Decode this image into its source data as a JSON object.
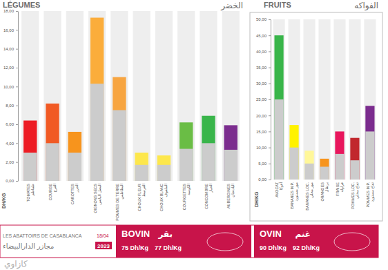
{
  "chart_data": [
    {
      "type": "bar",
      "title": "LÉGUMES",
      "subtitle": "الخضر",
      "y_label": "DH/KG",
      "categories": [
        "TOMATES\nطماطم",
        "COURGE\nالقرع",
        "CAROTTES\nالجزر",
        "OIGNONS SECS\nالبصل اليابس",
        "POMMES DE TERRE\nالبطاطس",
        "CHOUX FLEUR\nالقرنبيط",
        "CHOUX BLANC\nالملفوف",
        "COURGETTES\nالكوسة",
        "CONCOMBRE\nالخيار",
        "AUBERGINES\nالباذنجان"
      ],
      "series": [
        {
          "values": [
            6.4,
            8.2,
            5.2,
            17.3,
            11,
            3,
            2.7,
            6.2,
            6.9,
            5.9
          ],
          "colors": [
            "#ed1c24",
            "#f15a24",
            "#f7941d",
            "#fbad3b",
            "#f7a541",
            "#fde74c",
            "#fde74c",
            "#6abd45",
            "#39b54a",
            "#7b2d8e"
          ]
        },
        {
          "values": [
            3,
            4,
            3,
            10.3,
            7.5,
            1.7,
            1.7,
            3.4,
            4,
            3.3
          ],
          "color": "#cccccc"
        }
      ],
      "ylim": [
        0,
        18
      ],
      "yticks": [
        {
          "value": 0,
          "label": "0,00"
        },
        {
          "value": 2,
          "label": "2,00"
        },
        {
          "value": 4,
          "label": "4,00"
        },
        {
          "value": 6,
          "label": "6,00"
        },
        {
          "value": 8,
          "label": "8,00"
        },
        {
          "value": 10,
          "label": "10,00"
        },
        {
          "value": 12,
          "label": "12,00"
        },
        {
          "value": 14,
          "label": "14,00"
        },
        {
          "value": 16,
          "label": "16,00"
        },
        {
          "value": 18,
          "label": "18,00"
        }
      ],
      "grid": false
    },
    {
      "type": "bar",
      "title": "FRUITS",
      "subtitle": "الفواكه",
      "y_label": "DH/KG",
      "categories": [
        "AVOCAT\nأفوكا",
        "BANANES IMP.\nموز مستورد",
        "BANANES LOC.\nموز محلي",
        "ORANGES\nبرتقال",
        "FRAISE\nفراولة",
        "POMMES LOC.\nتفاح محلي",
        "POMMES IMP.\nتفاح مستورد"
      ],
      "series": [
        {
          "values": [
            45,
            17,
            9,
            6.5,
            15,
            13,
            23
          ],
          "colors": [
            "#39b54a",
            "#fff200",
            "#fff799",
            "#f7941d",
            "#e8175d",
            "#c1272d",
            "#7b2d8e"
          ]
        },
        {
          "values": [
            25,
            10,
            5,
            4,
            8,
            6,
            15
          ],
          "color": "#cccccc"
        }
      ],
      "ylim": [
        0,
        50
      ],
      "yticks": [
        {
          "value": 0,
          "label": "0,00"
        },
        {
          "value": 5,
          "label": "5,00"
        },
        {
          "value": 10,
          "label": "10,00"
        },
        {
          "value": 15,
          "label": "15,00"
        },
        {
          "value": 20,
          "label": "20,00"
        },
        {
          "value": 25,
          "label": "25,00"
        },
        {
          "value": 30,
          "label": "30,00"
        },
        {
          "value": 35,
          "label": "35,00"
        },
        {
          "value": 40,
          "label": "40,00"
        },
        {
          "value": 45,
          "label": "45,00"
        },
        {
          "value": 50,
          "label": "50,00"
        }
      ],
      "grid": false
    }
  ],
  "banner": {
    "left_title": "LES ABATTOIRS DE CASABLANCA",
    "left_title_ar": "مجازر الدارالبيضاء",
    "date": "18/04",
    "year": "2023",
    "bovin": {
      "label": "BOVIN",
      "label_ar": "بقر",
      "prices": [
        "75 Dh/Kg",
        "77 Dh/Kg"
      ]
    },
    "ovin": {
      "label": "OVIN",
      "label_ar": "غنم",
      "prices": [
        "90 Dh/Kg",
        "92 Dh/Kg"
      ]
    }
  },
  "watermark": "كازاوي"
}
